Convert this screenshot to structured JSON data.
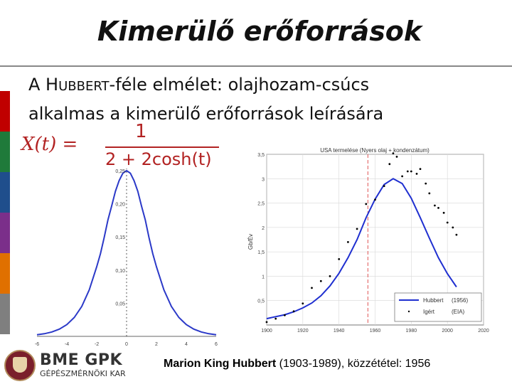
{
  "slide": {
    "title": "Kimerülő erőforrások",
    "line1_a": "A H",
    "line1_sc": "UBBERT",
    "line1_b": "-féle elmélet: olajhozam-csúcs",
    "line2": "alkalmas a kimerülő erőforrások leírására",
    "stripe_colors": [
      "#c00000",
      "#1f7a3a",
      "#1f4e8c",
      "#7b2f8a",
      "#e07000",
      "#7f7f7f"
    ]
  },
  "formula": {
    "lhs": "X(t) =",
    "numerator": "1",
    "denominator": "2 + 2cosh(t)",
    "color": "#b22222"
  },
  "logo": {
    "brand": "BME GPK",
    "subtitle": "GÉPÉSZMÉRNÖKI KAR"
  },
  "caption": {
    "name": "Marion King Hubbert",
    "rest": " (1903-1989), közzététel: 1956"
  },
  "chart_data": [
    {
      "type": "line",
      "xlim": [
        -6,
        6
      ],
      "ylim": [
        0,
        0.25
      ],
      "x_ticks": [
        "-6",
        "-4",
        "-2",
        "0",
        "2",
        "4",
        "6"
      ],
      "y_ticks": [
        "0,05",
        "0,10",
        "0,15",
        "0,20",
        "0,25"
      ],
      "series": [
        {
          "color": "#2b39c8",
          "x": [
            -6,
            -5.5,
            -5,
            -4.5,
            -4,
            -3.5,
            -3,
            -2.5,
            -2,
            -1.75,
            -1.5,
            -1.25,
            -1,
            -0.75,
            -0.5,
            -0.25,
            0,
            0.25,
            0.5,
            0.75,
            1,
            1.25,
            1.5,
            1.75,
            2,
            2.5,
            3,
            3.5,
            4,
            4.5,
            5,
            5.5,
            6
          ],
          "y": [
            0.0025,
            0.004,
            0.0066,
            0.0109,
            0.0177,
            0.0285,
            0.0452,
            0.0701,
            0.105,
            0.1249,
            0.1491,
            0.1757,
            0.1966,
            0.2189,
            0.235,
            0.2461,
            0.25,
            0.2461,
            0.235,
            0.2189,
            0.1966,
            0.1757,
            0.1491,
            0.1249,
            0.105,
            0.0701,
            0.0452,
            0.0285,
            0.0177,
            0.0109,
            0.0066,
            0.004,
            0.0025
          ]
        }
      ]
    },
    {
      "type": "line",
      "title": "USA termelése (Nyers olaj + kondenzátum)",
      "ylabel": "Gb/Év",
      "xlim": [
        1900,
        2020
      ],
      "ylim": [
        0,
        3.5
      ],
      "x_ticks": [
        "1900",
        "1920",
        "1940",
        "1960",
        "1980",
        "2000",
        "2020"
      ],
      "y_ticks": [
        "0,5",
        "1",
        "1,5",
        "2",
        "2,5",
        "3",
        "3,5"
      ],
      "vline_x": 1956,
      "legend": {
        "placement": "bottom-right",
        "entries": [
          {
            "label": "Hubbert",
            "note": "(1956)",
            "color": "#1f2fd0",
            "style": "line"
          },
          {
            "label": "Igért",
            "note": "(EIA)",
            "color": "#000000",
            "style": "points"
          }
        ]
      },
      "series": [
        {
          "name": "Hubbert",
          "color": "#1f2fd0",
          "x": [
            1900,
            1905,
            1910,
            1915,
            1920,
            1925,
            1930,
            1935,
            1940,
            1945,
            1950,
            1955,
            1960,
            1965,
            1970,
            1975,
            1980,
            1985,
            1990,
            1995,
            2000,
            2005
          ],
          "y": [
            0.13,
            0.17,
            0.21,
            0.27,
            0.35,
            0.45,
            0.6,
            0.8,
            1.06,
            1.38,
            1.75,
            2.2,
            2.58,
            2.88,
            3.0,
            2.9,
            2.6,
            2.2,
            1.78,
            1.38,
            1.05,
            0.78
          ]
        },
        {
          "name": "Igért",
          "color": "#000000",
          "x": [
            1900,
            1905,
            1910,
            1915,
            1920,
            1925,
            1930,
            1935,
            1940,
            1945,
            1950,
            1955,
            1960,
            1965,
            1968,
            1970,
            1972,
            1975,
            1978,
            1980,
            1983,
            1985,
            1988,
            1990,
            1993,
            1995,
            1998,
            2000,
            2003,
            2005
          ],
          "y": [
            0.06,
            0.13,
            0.2,
            0.28,
            0.44,
            0.76,
            0.9,
            1.0,
            1.35,
            1.7,
            1.97,
            2.48,
            2.57,
            2.85,
            3.3,
            3.52,
            3.45,
            3.05,
            3.15,
            3.15,
            3.1,
            3.2,
            2.9,
            2.7,
            2.45,
            2.4,
            2.3,
            2.1,
            2.0,
            1.85
          ]
        }
      ]
    }
  ]
}
